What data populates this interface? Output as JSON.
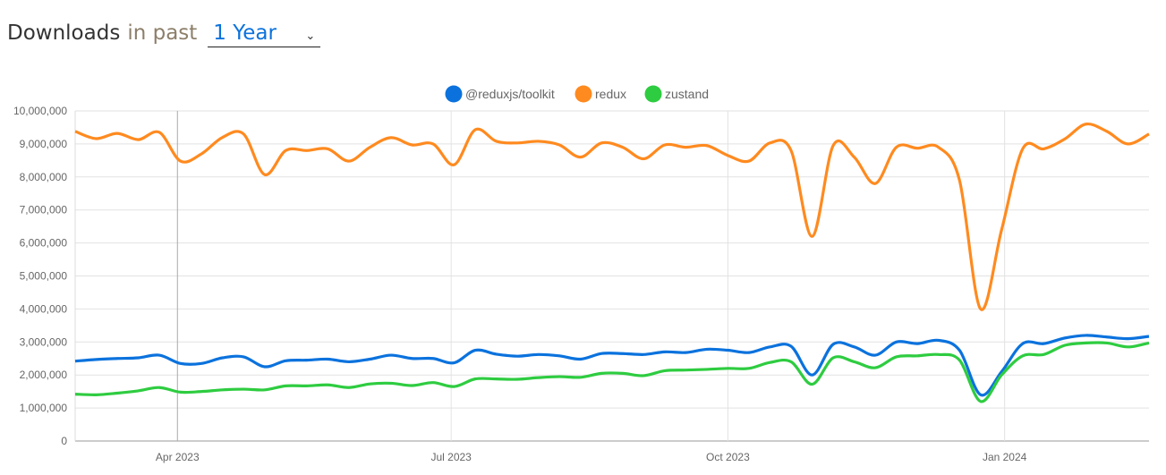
{
  "header": {
    "title": "Downloads",
    "subtitle": "in past",
    "period_selected": "1 Year",
    "chevron_icon": "chevron-down-icon"
  },
  "chart_data": {
    "type": "line",
    "title": "",
    "xlabel": "",
    "ylabel": "",
    "ylim": [
      0,
      10000000
    ],
    "yticks": [
      "0",
      "1,000,000",
      "2,000,000",
      "3,000,000",
      "4,000,000",
      "5,000,000",
      "6,000,000",
      "7,000,000",
      "8,000,000",
      "9,000,000",
      "10,000,000"
    ],
    "xlim": [
      "2023-02-26",
      "2024-02-18"
    ],
    "xticks": [
      {
        "date": "2023-04-01",
        "label": "Apr 2023"
      },
      {
        "date": "2023-07-01",
        "label": "Jul 2023"
      },
      {
        "date": "2023-10-01",
        "label": "Oct 2023"
      },
      {
        "date": "2024-01-01",
        "label": "Jan 2024"
      }
    ],
    "grid": true,
    "legend_position": "top",
    "x_start": "2023-02-26",
    "x_interval": "weekly",
    "series": [
      {
        "name": "@reduxjs/toolkit",
        "color": "#0b72dd",
        "values_millions": [
          2.42,
          2.47,
          2.5,
          2.52,
          2.6,
          2.35,
          2.35,
          2.52,
          2.55,
          2.25,
          2.43,
          2.45,
          2.48,
          2.4,
          2.48,
          2.6,
          2.5,
          2.5,
          2.37,
          2.75,
          2.63,
          2.57,
          2.62,
          2.58,
          2.48,
          2.65,
          2.65,
          2.62,
          2.7,
          2.68,
          2.78,
          2.75,
          2.68,
          2.85,
          2.87,
          2.0,
          2.93,
          2.85,
          2.6,
          3.0,
          2.95,
          3.05,
          2.75,
          1.4,
          2.1,
          2.95,
          2.95,
          3.12,
          3.2,
          3.15,
          3.1,
          3.17
        ]
      },
      {
        "name": "redux",
        "color": "#ff8a1f",
        "values_millions": [
          9.38,
          9.16,
          9.32,
          9.13,
          9.35,
          8.48,
          8.7,
          9.2,
          9.3,
          8.07,
          8.8,
          8.8,
          8.85,
          8.48,
          8.9,
          9.19,
          8.97,
          9.0,
          8.37,
          9.43,
          9.08,
          9.03,
          9.08,
          8.97,
          8.6,
          9.03,
          8.9,
          8.55,
          8.97,
          8.9,
          8.95,
          8.65,
          8.48,
          9.03,
          8.8,
          6.2,
          8.95,
          8.6,
          7.8,
          8.9,
          8.87,
          8.9,
          7.9,
          4.0,
          6.4,
          8.85,
          8.85,
          9.15,
          9.6,
          9.38,
          9.0,
          9.3
        ]
      },
      {
        "name": "zustand",
        "color": "#2ecc40",
        "values_millions": [
          1.42,
          1.4,
          1.45,
          1.52,
          1.62,
          1.48,
          1.5,
          1.55,
          1.57,
          1.55,
          1.67,
          1.67,
          1.7,
          1.62,
          1.73,
          1.75,
          1.68,
          1.77,
          1.65,
          1.88,
          1.88,
          1.87,
          1.92,
          1.95,
          1.93,
          2.05,
          2.05,
          1.98,
          2.13,
          2.15,
          2.17,
          2.2,
          2.2,
          2.38,
          2.4,
          1.72,
          2.52,
          2.4,
          2.22,
          2.55,
          2.58,
          2.62,
          2.45,
          1.2,
          2.0,
          2.58,
          2.62,
          2.9,
          2.97,
          2.97,
          2.85,
          2.97
        ]
      }
    ]
  }
}
